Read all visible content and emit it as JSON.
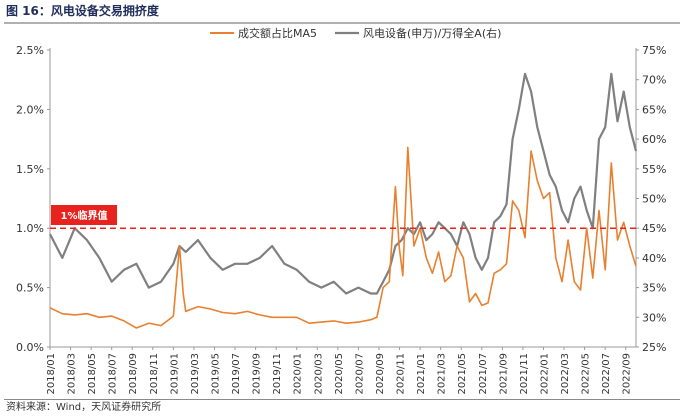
{
  "figure": {
    "title": "图 16：风电设备交易拥挤度",
    "source": "资料来源：Wind，天风证券研究所"
  },
  "chart_data": {
    "type": "line",
    "title": "风电设备交易拥挤度",
    "x_tick_labels": [
      "2018/01",
      "2018/03",
      "2018/05",
      "2018/07",
      "2018/09",
      "2018/11",
      "2019/01",
      "2019/03",
      "2019/05",
      "2019/07",
      "2019/09",
      "2019/11",
      "2020/01",
      "2020/03",
      "2020/05",
      "2020/07",
      "2020/09",
      "2020/11",
      "2021/01",
      "2021/03",
      "2021/05",
      "2021/07",
      "2021/09",
      "2021/11",
      "2022/01",
      "2022/03",
      "2022/05",
      "2022/07",
      "2022/09"
    ],
    "left_axis": {
      "ylim": [
        0.0,
        2.5
      ],
      "ticks": [
        0.0,
        0.5,
        1.0,
        1.5,
        2.0,
        2.5
      ],
      "tick_labels": [
        "0.0%",
        "0.5%",
        "1.0%",
        "1.5%",
        "2.0%",
        "2.5%"
      ]
    },
    "right_axis": {
      "ylim": [
        25,
        75
      ],
      "ticks": [
        25,
        30,
        35,
        40,
        45,
        50,
        55,
        60,
        65,
        70,
        75
      ],
      "tick_labels": [
        "25%",
        "30%",
        "35%",
        "40%",
        "45%",
        "50%",
        "55%",
        "60%",
        "65%",
        "70%",
        "75%"
      ]
    },
    "series": [
      {
        "name": "成交额占比MA5",
        "axis": "left",
        "color": "#e8802f",
        "x": [
          2018.0,
          2018.1,
          2018.2,
          2018.3,
          2018.4,
          2018.5,
          2018.6,
          2018.7,
          2018.8,
          2018.9,
          2019.0,
          2019.05,
          2019.08,
          2019.1,
          2019.2,
          2019.3,
          2019.4,
          2019.5,
          2019.6,
          2019.7,
          2019.8,
          2019.9,
          2020.0,
          2020.1,
          2020.2,
          2020.3,
          2020.4,
          2020.5,
          2020.6,
          2020.65,
          2020.7,
          2020.75,
          2020.8,
          2020.83,
          2020.86,
          2020.9,
          2020.95,
          2021.0,
          2021.05,
          2021.1,
          2021.15,
          2021.2,
          2021.25,
          2021.3,
          2021.35,
          2021.4,
          2021.45,
          2021.5,
          2021.55,
          2021.6,
          2021.65,
          2021.7,
          2021.75,
          2021.8,
          2021.85,
          2021.9,
          2021.95,
          2022.0,
          2022.05,
          2022.1,
          2022.15,
          2022.2,
          2022.25,
          2022.3,
          2022.35,
          2022.4,
          2022.45,
          2022.5,
          2022.55,
          2022.6,
          2022.65,
          2022.7,
          2022.75
        ],
        "values": [
          0.33,
          0.28,
          0.27,
          0.28,
          0.25,
          0.26,
          0.22,
          0.16,
          0.2,
          0.18,
          0.26,
          0.85,
          0.45,
          0.3,
          0.34,
          0.32,
          0.29,
          0.28,
          0.3,
          0.27,
          0.25,
          0.25,
          0.25,
          0.2,
          0.21,
          0.22,
          0.2,
          0.21,
          0.23,
          0.25,
          0.5,
          0.55,
          1.35,
          0.85,
          0.6,
          1.68,
          0.85,
          1.0,
          0.75,
          0.62,
          0.8,
          0.55,
          0.6,
          0.85,
          0.75,
          0.38,
          0.45,
          0.35,
          0.37,
          0.62,
          0.65,
          0.7,
          1.23,
          1.15,
          0.92,
          1.65,
          1.4,
          1.25,
          1.3,
          0.75,
          0.55,
          0.9,
          0.55,
          0.48,
          1.0,
          0.58,
          1.15,
          0.65,
          1.55,
          0.9,
          1.05,
          0.85,
          0.68
        ]
      },
      {
        "name": "风电设备(申万)/万得全A(右)",
        "axis": "right",
        "color": "#808080",
        "x": [
          2018.0,
          2018.1,
          2018.2,
          2018.3,
          2018.4,
          2018.5,
          2018.6,
          2018.7,
          2018.8,
          2018.9,
          2019.0,
          2019.05,
          2019.1,
          2019.2,
          2019.3,
          2019.4,
          2019.5,
          2019.6,
          2019.7,
          2019.8,
          2019.9,
          2020.0,
          2020.1,
          2020.2,
          2020.3,
          2020.4,
          2020.5,
          2020.6,
          2020.65,
          2020.7,
          2020.75,
          2020.8,
          2020.85,
          2020.9,
          2020.95,
          2021.0,
          2021.05,
          2021.1,
          2021.15,
          2021.2,
          2021.25,
          2021.3,
          2021.35,
          2021.4,
          2021.45,
          2021.5,
          2021.55,
          2021.6,
          2021.65,
          2021.7,
          2021.75,
          2021.8,
          2021.85,
          2021.9,
          2021.95,
          2022.0,
          2022.05,
          2022.1,
          2022.15,
          2022.2,
          2022.25,
          2022.3,
          2022.35,
          2022.4,
          2022.45,
          2022.5,
          2022.55,
          2022.6,
          2022.65,
          2022.7,
          2022.75
        ],
        "values": [
          44,
          40,
          45,
          43,
          40,
          36,
          38,
          39,
          35,
          36,
          39,
          42,
          41,
          43,
          40,
          38,
          39,
          39,
          40,
          42,
          39,
          38,
          36,
          35,
          36,
          34,
          35,
          34,
          34,
          36,
          38,
          42,
          43,
          45,
          44,
          46,
          43,
          44,
          46,
          45,
          44,
          42,
          46,
          44,
          40,
          38,
          40,
          46,
          47,
          49,
          60,
          65,
          71,
          68,
          62,
          58,
          54,
          52,
          48,
          46,
          50,
          52,
          48,
          45,
          60,
          62,
          71,
          63,
          68,
          62,
          58
        ]
      }
    ],
    "threshold": {
      "value": 1.0,
      "label": "1%临界值",
      "color": "#e8231e"
    },
    "legend": {
      "position": "top-right"
    }
  }
}
